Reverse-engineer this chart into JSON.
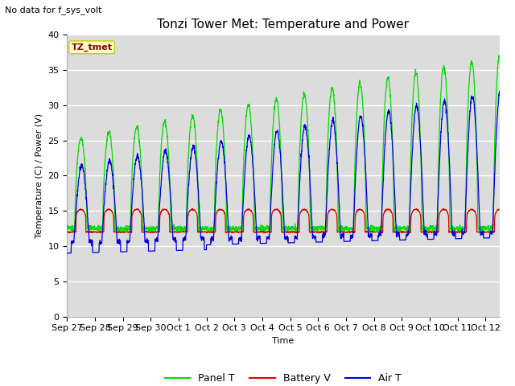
{
  "title": "Tonzi Tower Met: Temperature and Power",
  "no_data_text": "No data for f_sys_volt",
  "xlabel": "Time",
  "ylabel": "Temperature (C) / Power (V)",
  "ylim": [
    0,
    40
  ],
  "yticks": [
    0,
    5,
    10,
    15,
    20,
    25,
    30,
    35,
    40
  ],
  "x_tick_labels": [
    "Sep 27",
    "Sep 28",
    "Sep 29",
    "Sep 30",
    "Oct 1",
    "Oct 2",
    "Oct 3",
    "Oct 4",
    "Oct 5",
    "Oct 6",
    "Oct 7",
    "Oct 8",
    "Oct 9",
    "Oct 10",
    "Oct 11",
    "Oct 12"
  ],
  "panel_color": "#00dd00",
  "battery_color": "#dd0000",
  "air_color": "#0000dd",
  "background_color": "#dcdcdc",
  "figure_color": "#ffffff",
  "legend_labels": [
    "Panel T",
    "Battery V",
    "Air T"
  ],
  "tztmet_box_facecolor": "#ffffcc",
  "tztmet_box_edgecolor": "#cccc00",
  "tztmet_text_color": "#880000",
  "title_fontsize": 11,
  "label_fontsize": 8,
  "tick_fontsize": 8
}
